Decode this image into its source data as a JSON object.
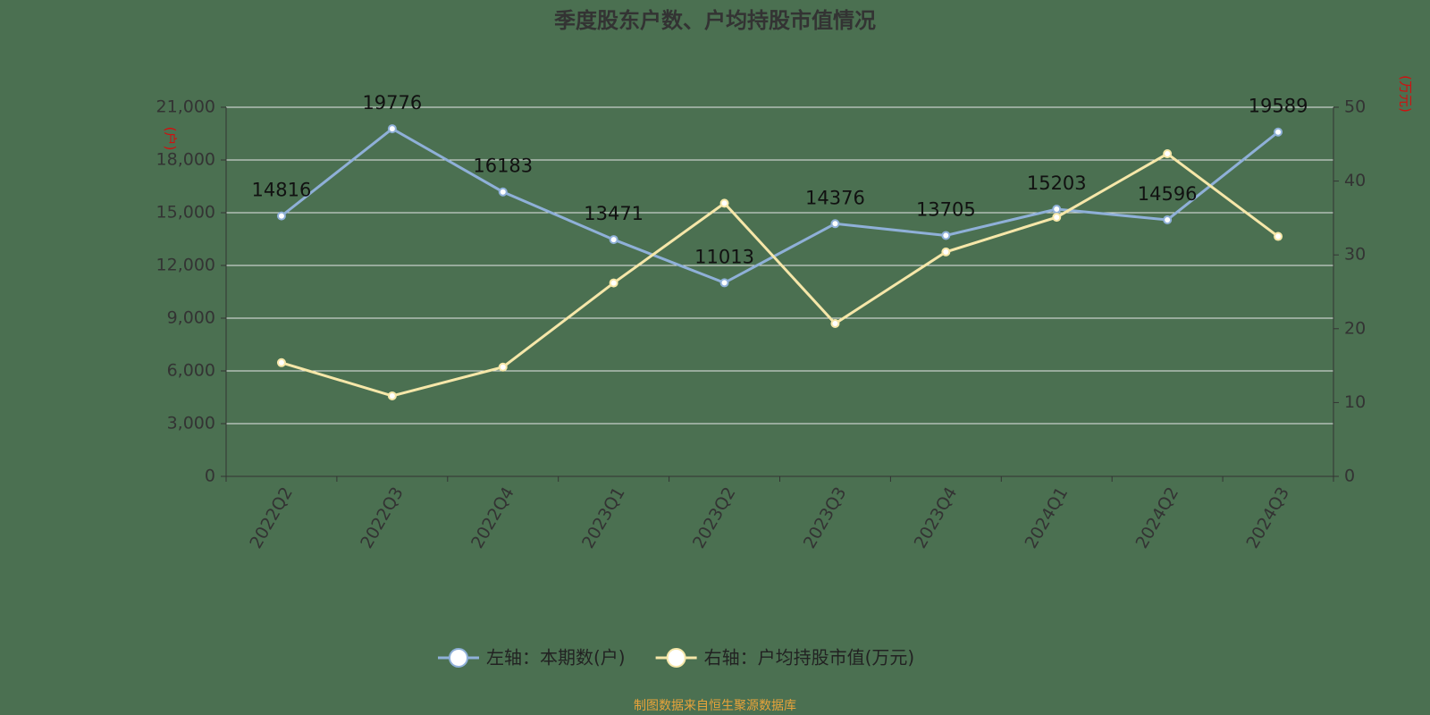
{
  "chart_data": {
    "type": "line",
    "title": "季度股东户数、户均持股市值情况",
    "y_label": "(户)",
    "y2_label": "(万元)",
    "source": "制图数据来自恒生聚源数据库",
    "categories": [
      "2022Q2",
      "2022Q3",
      "2022Q4",
      "2023Q1",
      "2023Q2",
      "2023Q3",
      "2023Q4",
      "2024Q1",
      "2024Q2",
      "2024Q3"
    ],
    "series": [
      {
        "name": "左轴：本期数(户)",
        "color": "#8fb0d8",
        "values": [
          14816,
          19776,
          16183,
          13471,
          11013,
          14376,
          13705,
          15203,
          14596,
          19589
        ]
      },
      {
        "name": "右轴：户均持股市值(万元)",
        "color": "#f6e7a9",
        "axis": "y2",
        "values": [
          15.4,
          10.9,
          14.8,
          26.2,
          37.0,
          20.7,
          30.4,
          35.1,
          43.7,
          32.5
        ]
      }
    ],
    "ylim": [
      0,
      21000
    ],
    "yticks": [
      0,
      {
        "value": 3000,
        "label": "3,000"
      },
      {
        "value": 6000,
        "label": "6,000"
      },
      {
        "value": 9000,
        "label": "9,000"
      },
      {
        "value": 12000,
        "label": "12,000"
      },
      {
        "value": 15000,
        "label": "15,000"
      },
      {
        "value": 18000,
        "label": "18,000"
      },
      {
        "value": 21000,
        "label": "21,000"
      }
    ],
    "y2lim": [
      0,
      50
    ],
    "y2ticks": [
      0,
      10,
      20,
      30,
      40,
      50
    ],
    "grid": true,
    "legend": "bottom"
  }
}
